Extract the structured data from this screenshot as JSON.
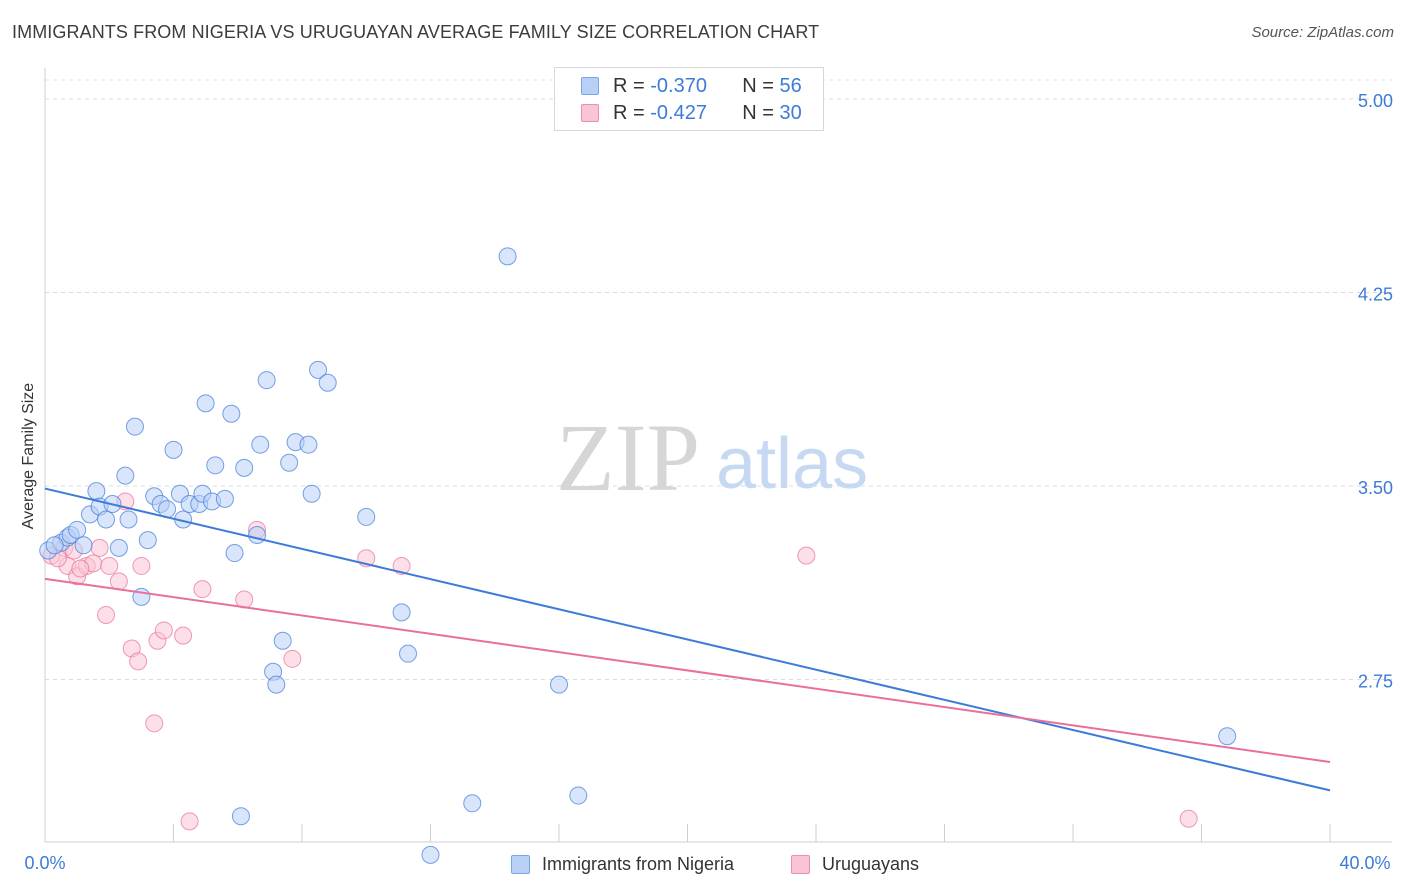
{
  "title": "IMMIGRANTS FROM NIGERIA VS URUGUAYAN AVERAGE FAMILY SIZE CORRELATION CHART",
  "source": "Source: ZipAtlas.com",
  "watermark": {
    "zip": "ZIP",
    "atlas": "atlas"
  },
  "legend": {
    "r_label": "R =",
    "n_label": "N =",
    "rows": [
      {
        "r": "-0.370",
        "n": "56",
        "fill": "#b8d0f5",
        "stroke": "#7aa7e6"
      },
      {
        "r": "-0.427",
        "n": "30",
        "fill": "#f9c4d4",
        "stroke": "#e890ae"
      }
    ]
  },
  "bottom_legend": [
    {
      "label": "Immigrants from Nigeria",
      "fill": "#b8d0f5",
      "stroke": "#7aa7e6"
    },
    {
      "label": "Uruguayans",
      "fill": "#f9c4d4",
      "stroke": "#e890ae"
    }
  ],
  "chart_data": {
    "type": "scatter",
    "xlabel": "",
    "ylabel": "Average Family Size",
    "xlim": [
      0,
      40
    ],
    "ylim": [
      2.12,
      5.12
    ],
    "x_tick_labels": [
      "0.0%",
      "40.0%"
    ],
    "y_ticks": [
      2.75,
      3.5,
      4.25,
      5.0
    ],
    "y_tick_labels": [
      "2.75",
      "3.50",
      "4.25",
      "5.00"
    ],
    "grid": "horizontal dashed",
    "legend_position": "top-center",
    "colors": {
      "nigeria": "#3d7bd8",
      "uruguay": "#e8709a",
      "tick_label": "#3d7bd8"
    },
    "series": [
      {
        "name": "Immigrants from Nigeria",
        "color": "#3d7bd8",
        "fill": "#b8d0f5",
        "trend": {
          "x": [
            0,
            40
          ],
          "y": [
            3.49,
            2.32
          ]
        },
        "points": [
          [
            0.1,
            3.25
          ],
          [
            0.5,
            3.28
          ],
          [
            0.7,
            3.3
          ],
          [
            0.8,
            3.31
          ],
          [
            1.0,
            3.33
          ],
          [
            1.2,
            3.27
          ],
          [
            1.4,
            3.39
          ],
          [
            1.6,
            3.48
          ],
          [
            1.7,
            3.42
          ],
          [
            1.9,
            3.37
          ],
          [
            2.1,
            3.43
          ],
          [
            2.3,
            3.26
          ],
          [
            2.5,
            3.54
          ],
          [
            2.6,
            3.37
          ],
          [
            2.8,
            3.73
          ],
          [
            3.0,
            3.07
          ],
          [
            3.2,
            3.29
          ],
          [
            3.4,
            3.46
          ],
          [
            3.6,
            3.43
          ],
          [
            3.8,
            3.41
          ],
          [
            4.0,
            3.64
          ],
          [
            4.2,
            3.47
          ],
          [
            4.3,
            3.37
          ],
          [
            4.5,
            3.43
          ],
          [
            4.8,
            3.43
          ],
          [
            4.9,
            3.47
          ],
          [
            5.0,
            3.82
          ],
          [
            5.2,
            3.44
          ],
          [
            5.3,
            3.58
          ],
          [
            5.6,
            3.45
          ],
          [
            5.8,
            3.78
          ],
          [
            5.9,
            3.24
          ],
          [
            6.2,
            3.57
          ],
          [
            6.6,
            3.31
          ],
          [
            6.7,
            3.66
          ],
          [
            6.9,
            3.91
          ],
          [
            7.1,
            2.78
          ],
          [
            7.2,
            2.73
          ],
          [
            7.4,
            2.9
          ],
          [
            7.6,
            3.59
          ],
          [
            7.8,
            3.67
          ],
          [
            8.2,
            3.66
          ],
          [
            8.3,
            3.47
          ],
          [
            8.5,
            3.95
          ],
          [
            8.8,
            3.9
          ],
          [
            10.0,
            3.38
          ],
          [
            11.1,
            3.01
          ],
          [
            11.3,
            2.85
          ],
          [
            12.0,
            2.07
          ],
          [
            13.3,
            2.27
          ],
          [
            14.4,
            4.39
          ],
          [
            16.0,
            2.73
          ],
          [
            16.6,
            2.3
          ],
          [
            6.1,
            2.22
          ],
          [
            36.8,
            2.53
          ],
          [
            0.3,
            3.27
          ]
        ]
      },
      {
        "name": "Uruguayans",
        "color": "#e8709a",
        "fill": "#f9c4d4",
        "trend": {
          "x": [
            0,
            40
          ],
          "y": [
            3.14,
            2.43
          ]
        },
        "points": [
          [
            0.2,
            3.23
          ],
          [
            0.6,
            3.26
          ],
          [
            0.7,
            3.19
          ],
          [
            0.9,
            3.25
          ],
          [
            1.0,
            3.15
          ],
          [
            1.3,
            3.19
          ],
          [
            1.5,
            3.2
          ],
          [
            1.7,
            3.26
          ],
          [
            1.9,
            3.0
          ],
          [
            2.0,
            3.19
          ],
          [
            2.3,
            3.13
          ],
          [
            2.5,
            3.44
          ],
          [
            2.7,
            2.87
          ],
          [
            2.9,
            2.82
          ],
          [
            3.0,
            3.19
          ],
          [
            3.4,
            2.58
          ],
          [
            3.5,
            2.9
          ],
          [
            3.7,
            2.94
          ],
          [
            4.3,
            2.92
          ],
          [
            4.5,
            2.2
          ],
          [
            4.9,
            3.1
          ],
          [
            6.2,
            3.06
          ],
          [
            6.6,
            3.33
          ],
          [
            7.7,
            2.83
          ],
          [
            10.0,
            3.22
          ],
          [
            11.1,
            3.19
          ],
          [
            23.7,
            3.23
          ],
          [
            35.6,
            2.21
          ],
          [
            0.4,
            3.22
          ],
          [
            1.1,
            3.18
          ]
        ]
      }
    ]
  }
}
